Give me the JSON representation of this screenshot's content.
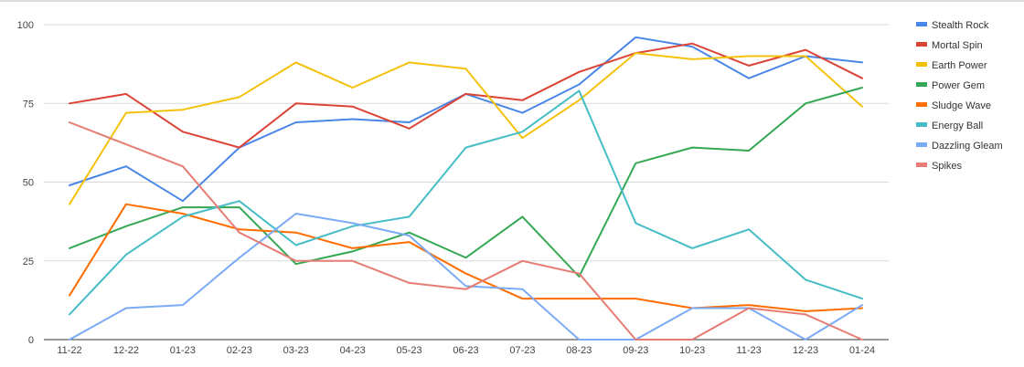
{
  "chart_data": {
    "type": "line",
    "title": "",
    "xlabel": "",
    "ylabel": "",
    "ylim": [
      0,
      100
    ],
    "yticks": [
      0,
      25,
      50,
      75,
      100
    ],
    "grid": true,
    "legend_position": "right",
    "categories": [
      "11-22",
      "12-22",
      "01-23",
      "02-23",
      "03-23",
      "04-23",
      "05-23",
      "06-23",
      "07-23",
      "08-23",
      "09-23",
      "10-23",
      "11-23",
      "12-23",
      "01-24"
    ],
    "series": [
      {
        "name": "Stealth Rock",
        "color": "#4a86e8",
        "values": [
          49,
          55,
          44,
          61,
          69,
          70,
          69,
          78,
          72,
          81,
          96,
          93,
          83,
          90,
          88
        ]
      },
      {
        "name": "Mortal Spin",
        "color": "#db4437",
        "values": [
          75,
          78,
          66,
          61,
          75,
          74,
          67,
          78,
          76,
          85,
          91,
          94,
          87,
          92,
          83
        ]
      },
      {
        "name": "Earth Power",
        "color": "#f4c20d",
        "values": [
          43,
          72,
          73,
          77,
          88,
          80,
          88,
          86,
          64,
          76,
          91,
          89,
          90,
          90,
          74
        ]
      },
      {
        "name": "Power Gem",
        "color": "#34a853",
        "values": [
          29,
          36,
          42,
          42,
          24,
          28,
          34,
          26,
          39,
          20,
          56,
          61,
          60,
          75,
          80
        ]
      },
      {
        "name": "Sludge Wave",
        "color": "#ff6d01",
        "values": [
          14,
          43,
          40,
          35,
          34,
          29,
          31,
          21,
          13,
          13,
          13,
          10,
          11,
          9,
          10
        ]
      },
      {
        "name": "Energy Ball",
        "color": "#46bdc6",
        "values": [
          8,
          27,
          39,
          44,
          30,
          36,
          39,
          61,
          66,
          79,
          37,
          29,
          35,
          19,
          13
        ]
      },
      {
        "name": "Dazzling Gleam",
        "color": "#7baaf7",
        "values": [
          0,
          10,
          11,
          26,
          40,
          37,
          33,
          17,
          16,
          0,
          0,
          10,
          10,
          0,
          11
        ]
      },
      {
        "name": "Spikes",
        "color": "#e67c73",
        "values": [
          69,
          62,
          55,
          34,
          25,
          25,
          18,
          16,
          25,
          21,
          0,
          0,
          10,
          8,
          0
        ]
      }
    ]
  }
}
